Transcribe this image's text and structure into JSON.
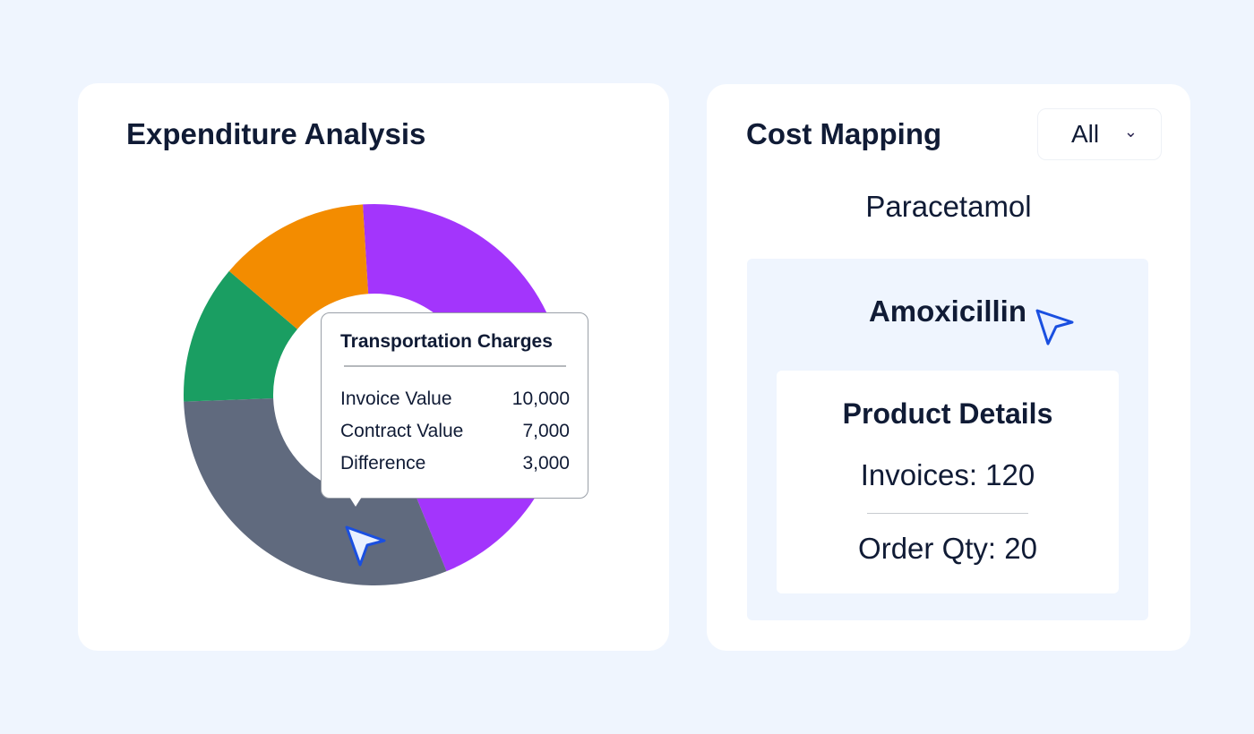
{
  "expenditure": {
    "title": "Expenditure Analysis",
    "tooltip": {
      "title": "Transportation Charges",
      "rows": [
        {
          "label": "Invoice Value",
          "value": "10,000"
        },
        {
          "label": "Contract Value",
          "value": "7,000"
        },
        {
          "label": "Difference",
          "value": "3,000"
        }
      ]
    }
  },
  "chart_data": {
    "type": "pie",
    "donut": true,
    "title": "Expenditure Analysis",
    "unit": "percent (estimated from arc angles)",
    "slices": [
      {
        "name": "Segment purple",
        "value": 44.8,
        "color": "#a335fc"
      },
      {
        "name": "Transportation Charges",
        "value": 30.6,
        "color": "#606a7e"
      },
      {
        "name": "Segment green",
        "value": 11.8,
        "color": "#1a9e62"
      },
      {
        "name": "Segment orange",
        "value": 12.8,
        "color": "#f38c00"
      }
    ],
    "start_angle_deg": -3.5
  },
  "cost_mapping": {
    "title": "Cost Mapping",
    "filter": {
      "selected": "All"
    },
    "items": [
      "Paracetamol",
      "Amoxicillin"
    ],
    "product_details": {
      "title": "Product Details",
      "invoices": "Invoices: 120",
      "order_qty": "Order Qty: 20"
    }
  },
  "colors": {
    "background": "#eff5fe",
    "cursor": "#1a4fe0",
    "text": "#101b35"
  }
}
